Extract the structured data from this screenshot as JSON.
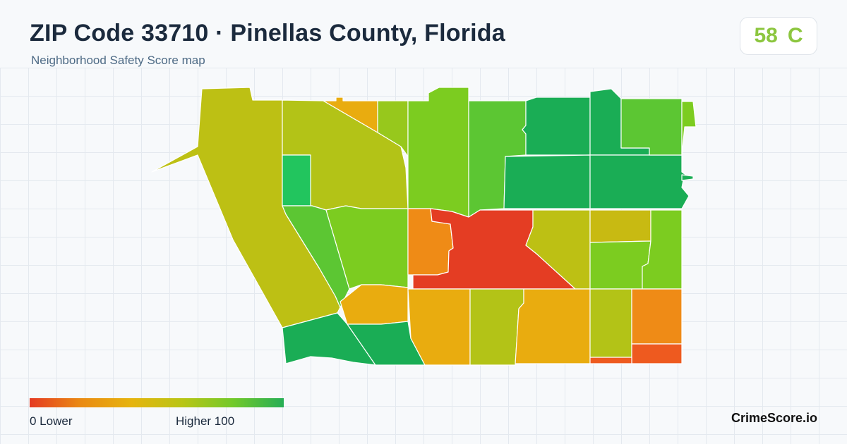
{
  "header": {
    "title": "ZIP Code 33710 · Pinellas County, Florida",
    "subtitle": "Neighborhood Safety Score map"
  },
  "score": {
    "value": "58",
    "grade": "C"
  },
  "legend": {
    "min_label": "0  Lower",
    "max_label": "Higher  100",
    "scale_colors": [
      "#e53a22",
      "#ea8a13",
      "#e6b40e",
      "#b9c515",
      "#72c92a",
      "#26ae55"
    ]
  },
  "brand": "CrimeScore.io",
  "colors": {
    "red": "#e43d23",
    "red_orange": "#ee5a1f",
    "orange": "#ef8b16",
    "amber": "#e9ac0f",
    "olive": "#bdc014",
    "olive_yellow": "#c8ba12",
    "yellow_green": "#b3c317",
    "green_yellow": "#97c81c",
    "lime": "#7ccc20",
    "green": "#5cc633",
    "bright_green": "#22c55e",
    "dark_green": "#1aad55"
  }
}
